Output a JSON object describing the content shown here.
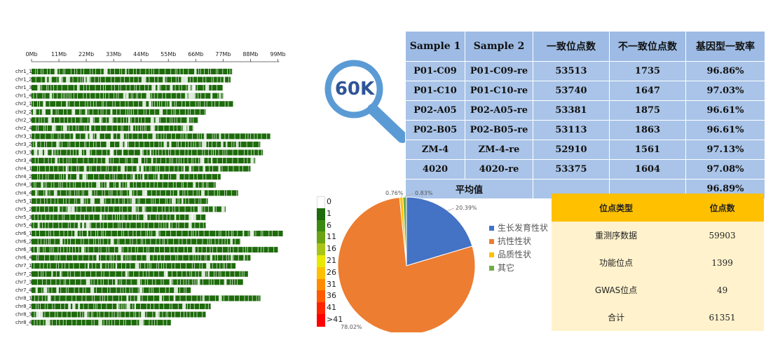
{
  "genome_map": {
    "axis_ticks": [
      "0Mb",
      "11Mb",
      "22Mb",
      "33Mb",
      "44Mb",
      "55Mb",
      "66Mb",
      "77Mb",
      "88Mb",
      "99Mb"
    ],
    "chromosomes": [
      {
        "name": "chr1_1",
        "length_mb": 81
      },
      {
        "name": "chr1_2",
        "length_mb": 80
      },
      {
        "name": "chr1_3",
        "length_mb": 77
      },
      {
        "name": "chr1_4",
        "length_mb": 77
      },
      {
        "name": "chr2_1",
        "length_mb": 81
      },
      {
        "name": "chr2_2",
        "length_mb": 70
      },
      {
        "name": "chr2_3",
        "length_mb": 67
      },
      {
        "name": "chr2_4",
        "length_mb": 65
      },
      {
        "name": "chr3_1",
        "length_mb": 96
      },
      {
        "name": "chr3_2",
        "length_mb": 92
      },
      {
        "name": "chr3_3",
        "length_mb": 93
      },
      {
        "name": "chr3_4",
        "length_mb": 90
      },
      {
        "name": "chr4_1",
        "length_mb": 88
      },
      {
        "name": "chr4_2",
        "length_mb": 76
      },
      {
        "name": "chr4_3",
        "length_mb": 74
      },
      {
        "name": "chr4_4",
        "length_mb": 83
      },
      {
        "name": "chr5_1",
        "length_mb": 71
      },
      {
        "name": "chr5_2",
        "length_mb": 78
      },
      {
        "name": "chr5_3",
        "length_mb": 70
      },
      {
        "name": "chr5_4",
        "length_mb": 70
      },
      {
        "name": "chr6_1",
        "length_mb": 101
      },
      {
        "name": "chr6_2",
        "length_mb": 84
      },
      {
        "name": "chr6_3",
        "length_mb": 99
      },
      {
        "name": "chr6_4",
        "length_mb": 88
      },
      {
        "name": "chr7_1",
        "length_mb": 82
      },
      {
        "name": "chr7_2",
        "length_mb": 87
      },
      {
        "name": "chr7_3",
        "length_mb": 85
      },
      {
        "name": "chr7_4",
        "length_mb": 64
      },
      {
        "name": "chr8_1",
        "length_mb": 92
      },
      {
        "name": "chr8_2",
        "length_mb": 72
      },
      {
        "name": "chr8_3",
        "length_mb": 70
      },
      {
        "name": "chr8_4",
        "length_mb": 56
      }
    ],
    "colors": {
      "dense": "#1e6b0c",
      "light": "#ffffff",
      "gap": "#f2f2f2"
    }
  },
  "magnifier": {
    "label": "60K",
    "color": "#5b9bd5"
  },
  "sample_table": {
    "headers": [
      "Sample 1",
      "Sample 2",
      "一致位点数",
      "不一致位点数",
      "基因型一致率"
    ],
    "rows": [
      [
        "P01-C09",
        "P01-C09-re",
        "53513",
        "1735",
        "96.86%"
      ],
      [
        "P01-C10",
        "P01-C10-re",
        "53740",
        "1647",
        "97.03%"
      ],
      [
        "P02-A05",
        "P02-A05-re",
        "53381",
        "1875",
        "96.61%"
      ],
      [
        "P02-B05",
        "P02-B05-re",
        "53113",
        "1863",
        "96.61%"
      ],
      [
        "ZM-4",
        "ZM-4-re",
        "52910",
        "1561",
        "97.13%"
      ],
      [
        "4020",
        "4020-re",
        "53375",
        "1604",
        "97.08%"
      ]
    ],
    "average_label": "平均值",
    "average_value": "96.89%"
  },
  "density_legend": [
    {
      "label": "0",
      "color": "#ffffff"
    },
    {
      "label": "1",
      "color": "#1e6b0c"
    },
    {
      "label": "6",
      "color": "#3a8a12"
    },
    {
      "label": "11",
      "color": "#6aa313"
    },
    {
      "label": "16",
      "color": "#a8c417"
    },
    {
      "label": "21",
      "color": "#e8e800"
    },
    {
      "label": "26",
      "color": "#ffc000"
    },
    {
      "label": "31",
      "color": "#ff8c00"
    },
    {
      "label": "36",
      "color": "#ff5a00"
    },
    {
      "label": "41",
      "color": "#ff2400"
    },
    {
      "label": ">41",
      "color": "#ff0000"
    }
  ],
  "chart_data": {
    "type": "pie",
    "categories": [
      "生长发育性状",
      "抗性性状",
      "品质性状",
      "其它"
    ],
    "values": [
      20.39,
      78.02,
      0.76,
      0.83
    ],
    "labels": [
      "20.39%",
      "78.02%",
      "0.76%",
      "0.83%"
    ],
    "colors": [
      "#4472c4",
      "#ed7d31",
      "#ffc000",
      "#70ad47"
    ],
    "legend_position": "right"
  },
  "locus_table": {
    "headers": [
      "位点类型",
      "位点数"
    ],
    "rows": [
      [
        "重测序数据",
        "59903"
      ],
      [
        "功能位点",
        "1399"
      ],
      [
        "GWAS位点",
        "49"
      ],
      [
        "合计",
        "61351"
      ]
    ]
  }
}
